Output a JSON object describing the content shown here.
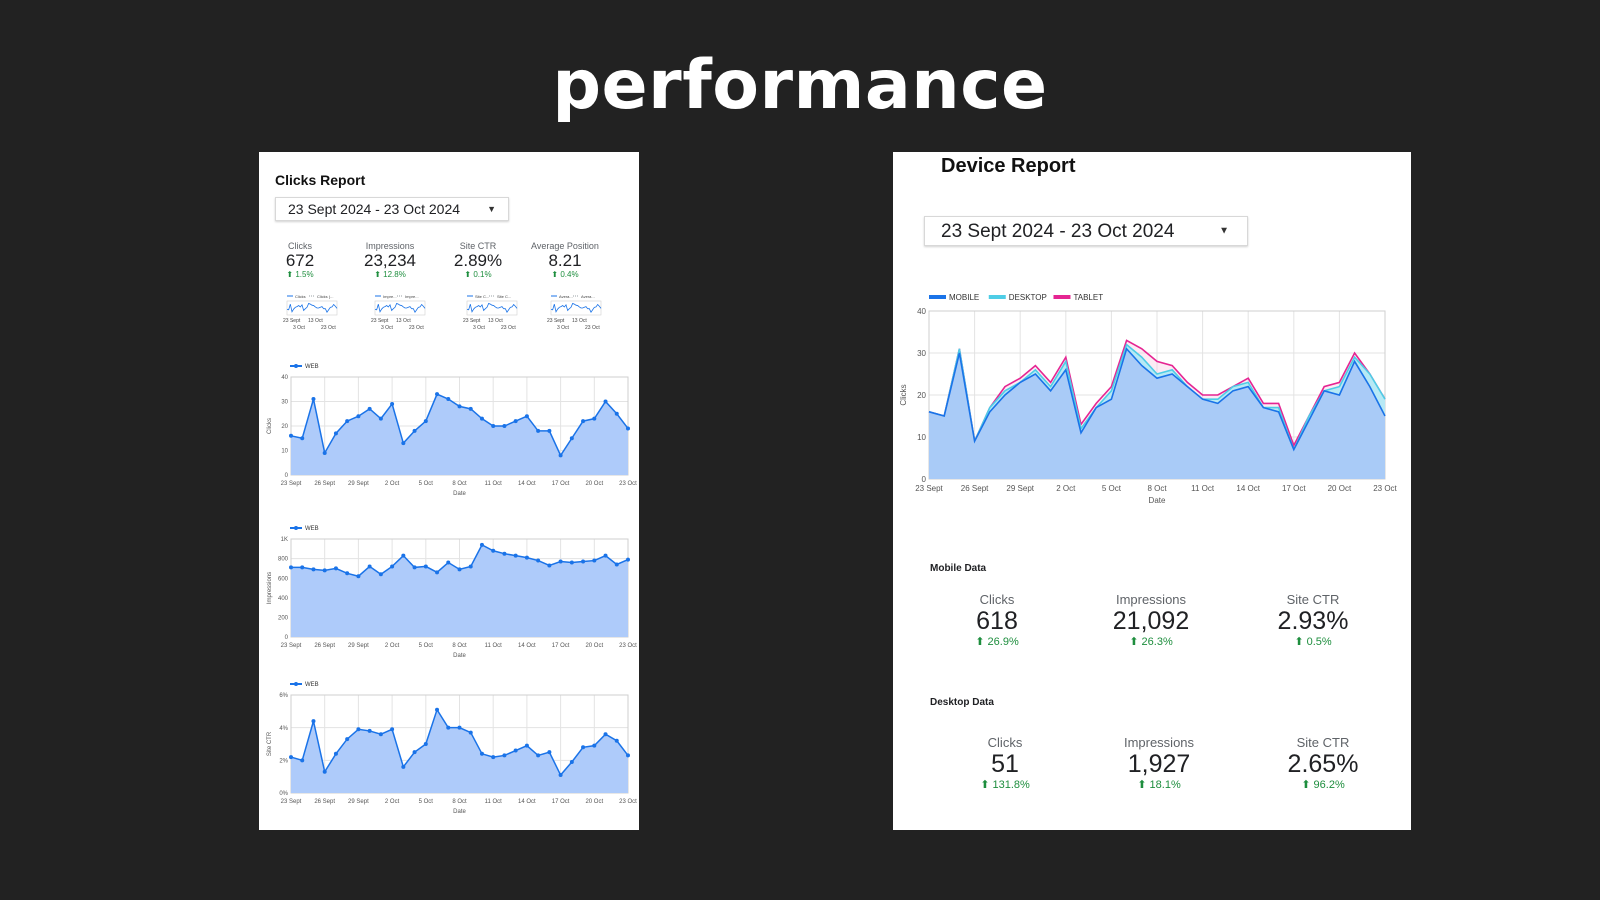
{
  "page": {
    "title": "performance"
  },
  "clicks_report": {
    "title": "Clicks Report",
    "date_range": "23 Sept 2024 - 23 Oct 2024",
    "scorecards": [
      {
        "label": "Clicks",
        "value": "672",
        "delta": "1.5%",
        "legend": [
          "Clicks",
          "Clicks (..."
        ]
      },
      {
        "label": "Impressions",
        "value": "23,234",
        "delta": "12.8%",
        "legend": [
          "Impre...",
          "Impre..."
        ]
      },
      {
        "label": "Site CTR",
        "value": "2.89%",
        "delta": "0.1%",
        "legend": [
          "Site C...",
          "Site C..."
        ]
      },
      {
        "label": "Average Position",
        "value": "8.21",
        "delta": "0.4%",
        "legend": [
          "Avera...",
          "Avera..."
        ]
      }
    ],
    "sparkline_ticks": {
      "row1": [
        "23 Sept",
        "13 Oct"
      ],
      "row2": [
        "3 Oct",
        "23 Oct"
      ]
    }
  },
  "device_report": {
    "title": "Device Report",
    "date_range": "23 Sept 2024 - 23 Oct 2024",
    "mobile": {
      "title": "Mobile Data",
      "metrics": [
        {
          "label": "Clicks",
          "value": "618",
          "delta": "26.9%"
        },
        {
          "label": "Impressions",
          "value": "21,092",
          "delta": "26.3%"
        },
        {
          "label": "Site CTR",
          "value": "2.93%",
          "delta": "0.5%"
        }
      ]
    },
    "desktop": {
      "title": "Desktop Data",
      "metrics": [
        {
          "label": "Clicks",
          "value": "51",
          "delta": "131.8%"
        },
        {
          "label": "Impressions",
          "value": "1,927",
          "delta": "18.1%"
        },
        {
          "label": "Site CTR",
          "value": "2.65%",
          "delta": "96.2%"
        }
      ]
    }
  },
  "colors": {
    "line": "#1a73e8",
    "fill": "#aecbfa",
    "mobile": "#1a73e8",
    "desktop": "#4ecde6",
    "tablet": "#e52592",
    "delta": "#1e8e3e"
  },
  "chart_data": [
    {
      "type": "area",
      "legend": [
        "WEB"
      ],
      "xlabel": "Date",
      "ylabel": "Clicks",
      "ylim": [
        0,
        40
      ],
      "y_ticks": [
        "0",
        "10",
        "20",
        "30",
        "40"
      ],
      "x_ticks": [
        "23 Sept",
        "26 Sept",
        "29 Sept",
        "2 Oct",
        "5 Oct",
        "8 Oct",
        "11 Oct",
        "14 Oct",
        "17 Oct",
        "20 Oct",
        "23 Oct"
      ],
      "series": [
        {
          "name": "WEB",
          "values": [
            16,
            15,
            31,
            9,
            17,
            22,
            24,
            27,
            23,
            29,
            13,
            18,
            22,
            33,
            31,
            28,
            27,
            23,
            20,
            20,
            22,
            24,
            18,
            18,
            8,
            15,
            22,
            23,
            30,
            25,
            19
          ]
        }
      ]
    },
    {
      "type": "area",
      "legend": [
        "WEB"
      ],
      "xlabel": "Date",
      "ylabel": "Impressions",
      "ylim": [
        0,
        1000
      ],
      "y_ticks": [
        "0",
        "200",
        "400",
        "600",
        "800",
        "1K"
      ],
      "x_ticks": [
        "23 Sept",
        "26 Sept",
        "29 Sept",
        "2 Oct",
        "5 Oct",
        "8 Oct",
        "11 Oct",
        "14 Oct",
        "17 Oct",
        "20 Oct",
        "23 Oct"
      ],
      "series": [
        {
          "name": "WEB",
          "values": [
            710,
            710,
            690,
            680,
            700,
            650,
            620,
            720,
            640,
            720,
            830,
            710,
            720,
            660,
            760,
            690,
            720,
            940,
            880,
            850,
            830,
            810,
            780,
            730,
            770,
            760,
            770,
            780,
            830,
            740,
            790
          ]
        }
      ]
    },
    {
      "type": "area",
      "legend": [
        "WEB"
      ],
      "xlabel": "Date",
      "ylabel": "Site CTR",
      "ylim": [
        0,
        6
      ],
      "y_ticks": [
        "0%",
        "2%",
        "4%",
        "6%"
      ],
      "x_ticks": [
        "23 Sept",
        "26 Sept",
        "29 Sept",
        "2 Oct",
        "5 Oct",
        "8 Oct",
        "11 Oct",
        "14 Oct",
        "17 Oct",
        "20 Oct",
        "23 Oct"
      ],
      "series": [
        {
          "name": "WEB",
          "values": [
            2.2,
            2.0,
            4.4,
            1.3,
            2.4,
            3.3,
            3.9,
            3.8,
            3.6,
            3.9,
            1.6,
            2.5,
            3.0,
            5.1,
            4.0,
            4.0,
            3.7,
            2.4,
            2.2,
            2.3,
            2.6,
            2.9,
            2.3,
            2.5,
            1.1,
            1.9,
            2.8,
            2.9,
            3.6,
            3.2,
            2.3
          ]
        }
      ]
    },
    {
      "type": "area",
      "legend": [
        "MOBILE",
        "DESKTOP",
        "TABLET"
      ],
      "xlabel": "Date",
      "ylabel": "Clicks",
      "ylim": [
        0,
        40
      ],
      "y_ticks": [
        "0",
        "10",
        "20",
        "30",
        "40"
      ],
      "x_ticks": [
        "23 Sept",
        "26 Sept",
        "29 Sept",
        "2 Oct",
        "5 Oct",
        "8 Oct",
        "11 Oct",
        "14 Oct",
        "17 Oct",
        "20 Oct",
        "23 Oct"
      ],
      "series": [
        {
          "name": "MOBILE",
          "values": [
            16,
            15,
            30,
            9,
            16,
            20,
            23,
            25,
            21,
            26,
            11,
            17,
            19,
            31,
            27,
            24,
            25,
            22,
            19,
            18,
            21,
            22,
            17,
            16,
            7,
            14,
            21,
            20,
            28,
            22,
            15
          ]
        },
        {
          "name": "DESKTOP",
          "values": [
            16,
            15,
            31,
            9,
            17,
            21,
            23,
            26,
            22,
            28,
            12,
            17,
            21,
            32,
            29,
            25,
            26,
            22,
            19,
            19,
            22,
            23,
            17,
            17,
            7,
            15,
            21,
            22,
            29,
            25,
            19
          ]
        },
        {
          "name": "TABLET",
          "values": [
            16,
            15,
            31,
            9,
            17,
            22,
            24,
            27,
            23,
            29,
            13,
            18,
            22,
            33,
            31,
            28,
            27,
            23,
            20,
            20,
            22,
            24,
            18,
            18,
            8,
            15,
            22,
            23,
            30,
            25,
            19
          ]
        }
      ]
    }
  ]
}
